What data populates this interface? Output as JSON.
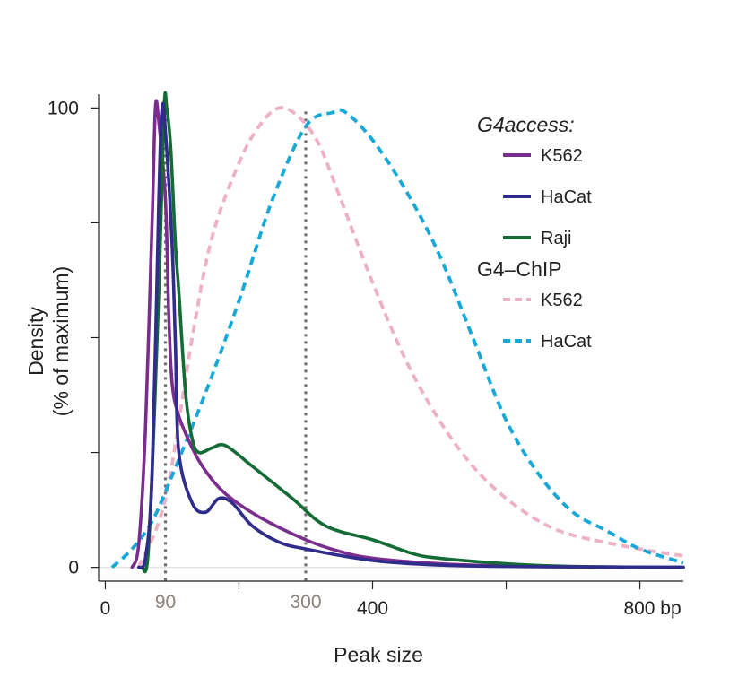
{
  "chart_data": {
    "type": "line",
    "xlabel": "Peak size",
    "ylabel": [
      "Density",
      "(% of maximum)"
    ],
    "xlim": [
      -10,
      865
    ],
    "ylim": [
      -3,
      103
    ],
    "x_ticks": [
      {
        "value": 0,
        "label": "0",
        "emphasis": false
      },
      {
        "value": 200,
        "label": "",
        "emphasis": false
      },
      {
        "value": 400,
        "label": "400",
        "emphasis": false
      },
      {
        "value": 600,
        "label": "",
        "emphasis": false
      },
      {
        "value": 800,
        "label": "800 bp",
        "emphasis": false
      }
    ],
    "x_marks": [
      {
        "value": 90,
        "label": "90"
      },
      {
        "value": 300,
        "label": "300"
      }
    ],
    "y_ticks": [
      {
        "value": 0,
        "label": "0"
      },
      {
        "value": 25,
        "label": ""
      },
      {
        "value": 50,
        "label": ""
      },
      {
        "value": 75,
        "label": ""
      },
      {
        "value": 100,
        "label": "100"
      }
    ],
    "legend": {
      "position": "top-right",
      "groups": [
        {
          "title": "G4access:",
          "italic": true,
          "entries": [
            "K562",
            "HaCat",
            "Raji"
          ]
        },
        {
          "title": "G4–ChIP",
          "italic": false,
          "entries": [
            "K562",
            "HaCat"
          ]
        }
      ]
    },
    "series": [
      {
        "name": "K562",
        "group": "G4access",
        "color": "#7B2D8E",
        "dashed": false,
        "points": [
          [
            40,
            0
          ],
          [
            50,
            5
          ],
          [
            60,
            30
          ],
          [
            70,
            75
          ],
          [
            75,
            100
          ],
          [
            80,
            97
          ],
          [
            90,
            80
          ],
          [
            95,
            55
          ],
          [
            100,
            40
          ],
          [
            110,
            33
          ],
          [
            130,
            26
          ],
          [
            150,
            21
          ],
          [
            180,
            16
          ],
          [
            230,
            11
          ],
          [
            300,
            6
          ],
          [
            350,
            3.5
          ],
          [
            400,
            2
          ],
          [
            500,
            0.8
          ],
          [
            600,
            0.3
          ],
          [
            700,
            0.1
          ],
          [
            865,
            0
          ]
        ]
      },
      {
        "name": "HaCat",
        "group": "G4access",
        "color": "#2F2C8C",
        "dashed": false,
        "points": [
          [
            50,
            0
          ],
          [
            60,
            2
          ],
          [
            70,
            20
          ],
          [
            80,
            80
          ],
          [
            85,
            100
          ],
          [
            90,
            95
          ],
          [
            100,
            70
          ],
          [
            105,
            48
          ],
          [
            110,
            25
          ],
          [
            130,
            14
          ],
          [
            150,
            12
          ],
          [
            170,
            15
          ],
          [
            190,
            14
          ],
          [
            220,
            9
          ],
          [
            260,
            5.5
          ],
          [
            300,
            4
          ],
          [
            400,
            1.5
          ],
          [
            500,
            0.5
          ],
          [
            600,
            0.2
          ],
          [
            700,
            0.1
          ],
          [
            865,
            0
          ]
        ]
      },
      {
        "name": "Raji",
        "group": "G4access",
        "color": "#146B35",
        "dashed": false,
        "points": [
          [
            55,
            0
          ],
          [
            65,
            5
          ],
          [
            80,
            60
          ],
          [
            88,
            100
          ],
          [
            92,
            100
          ],
          [
            98,
            91
          ],
          [
            105,
            70
          ],
          [
            110,
            60
          ],
          [
            120,
            38
          ],
          [
            130,
            28
          ],
          [
            140,
            25
          ],
          [
            160,
            26
          ],
          [
            180,
            26.5
          ],
          [
            220,
            22
          ],
          [
            280,
            15
          ],
          [
            330,
            9
          ],
          [
            400,
            6
          ],
          [
            460,
            3
          ],
          [
            500,
            2
          ],
          [
            600,
            0.8
          ],
          [
            700,
            0.2
          ],
          [
            865,
            0
          ]
        ]
      },
      {
        "name": "K562",
        "group": "G4–ChIP",
        "color": "#EEB0C4",
        "dashed": true,
        "points": [
          [
            50,
            0
          ],
          [
            90,
            15
          ],
          [
            130,
            50
          ],
          [
            160,
            72
          ],
          [
            200,
            88
          ],
          [
            230,
            96
          ],
          [
            260,
            100
          ],
          [
            290,
            98
          ],
          [
            320,
            92
          ],
          [
            350,
            81
          ],
          [
            400,
            62
          ],
          [
            450,
            45
          ],
          [
            500,
            32
          ],
          [
            550,
            22
          ],
          [
            600,
            15
          ],
          [
            650,
            10
          ],
          [
            700,
            7
          ],
          [
            800,
            4
          ],
          [
            865,
            2.5
          ]
        ]
      },
      {
        "name": "HaCat",
        "group": "G4–ChIP",
        "color": "#18A8D8",
        "dashed": true,
        "points": [
          [
            10,
            0
          ],
          [
            40,
            4
          ],
          [
            70,
            10
          ],
          [
            100,
            20
          ],
          [
            150,
            38
          ],
          [
            200,
            58
          ],
          [
            250,
            80
          ],
          [
            300,
            96
          ],
          [
            340,
            99
          ],
          [
            360,
            99
          ],
          [
            400,
            93
          ],
          [
            450,
            82
          ],
          [
            500,
            68
          ],
          [
            550,
            50
          ],
          [
            600,
            32
          ],
          [
            650,
            20
          ],
          [
            700,
            12
          ],
          [
            750,
            8
          ],
          [
            800,
            4
          ],
          [
            865,
            1
          ]
        ]
      }
    ]
  }
}
